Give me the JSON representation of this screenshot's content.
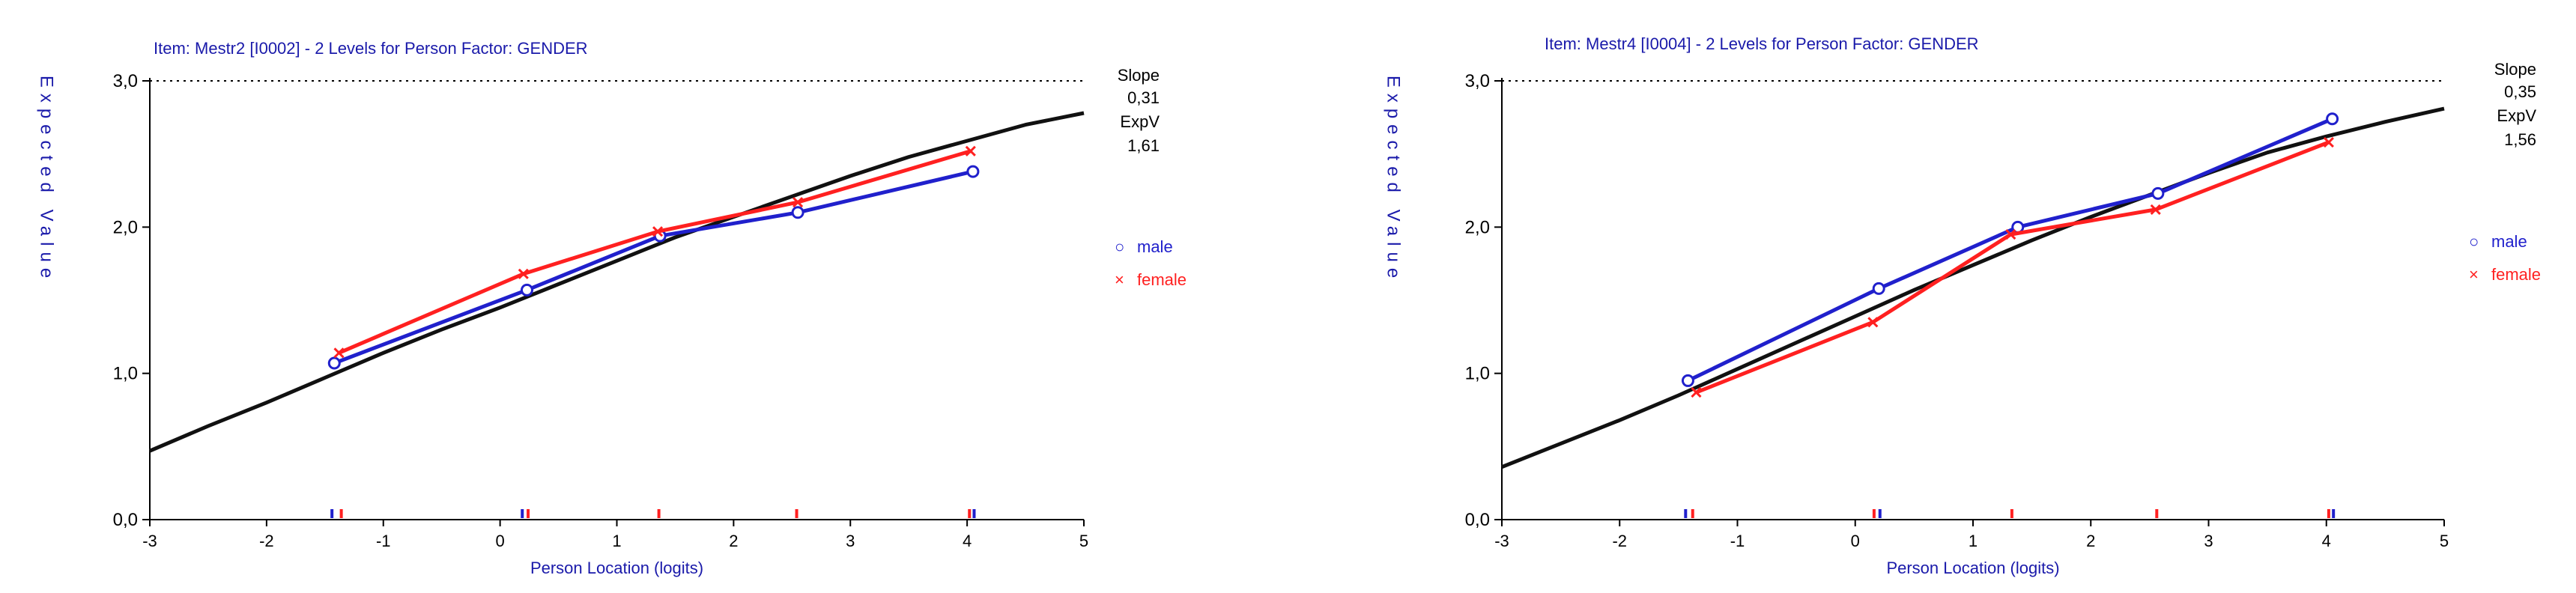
{
  "chart_data": [
    {
      "type": "line",
      "title": "Item: Mestr2 [I0002] - 2 Levels for Person Factor: GENDER",
      "xlabel": "Person Location (logits)",
      "ylabel": "Expected Value",
      "xlim": [
        -3,
        5
      ],
      "ylim": [
        0,
        3
      ],
      "x_ticks": [
        "-3",
        "-2",
        "-1",
        "0",
        "1",
        "2",
        "3",
        "4",
        "5"
      ],
      "y_ticks": [
        "0,0",
        "1,0",
        "2,0",
        "3,0"
      ],
      "max_line": 3.0,
      "stats": {
        "slope_label": "Slope",
        "slope": "0,31",
        "expv_label": "ExpV",
        "expv": "1,61"
      },
      "legend": [
        {
          "name": "male",
          "marker": "○",
          "color": "#2020cc"
        },
        {
          "name": "female",
          "marker": "×",
          "color": "#ff2020"
        }
      ],
      "icc": [
        [
          -3,
          0.47
        ],
        [
          -2.5,
          0.64
        ],
        [
          -2,
          0.8
        ],
        [
          -1.5,
          0.97
        ],
        [
          -1,
          1.14
        ],
        [
          -0.5,
          1.3
        ],
        [
          0,
          1.45
        ],
        [
          0.5,
          1.61
        ],
        [
          1,
          1.77
        ],
        [
          1.5,
          1.93
        ],
        [
          2,
          2.07
        ],
        [
          2.5,
          2.21
        ],
        [
          3,
          2.35
        ],
        [
          3.5,
          2.48
        ],
        [
          4,
          2.59
        ],
        [
          4.5,
          2.7
        ],
        [
          5,
          2.78
        ]
      ],
      "series": [
        {
          "name": "male",
          "color": "#2020cc",
          "marker": "circle",
          "x": [
            -1.42,
            0.23,
            1.37,
            2.55,
            4.05
          ],
          "y": [
            1.07,
            1.57,
            1.94,
            2.1,
            2.38
          ]
        },
        {
          "name": "female",
          "color": "#ff2020",
          "marker": "cross",
          "x": [
            -1.38,
            0.2,
            1.35,
            2.55,
            4.03
          ],
          "y": [
            1.14,
            1.68,
            1.97,
            2.17,
            2.52
          ]
        }
      ],
      "class_intervals": [
        {
          "x": -1.44,
          "color": "#2020cc"
        },
        {
          "x": -1.36,
          "color": "#ff2020"
        },
        {
          "x": 0.19,
          "color": "#2020cc"
        },
        {
          "x": 0.24,
          "color": "#ff2020"
        },
        {
          "x": 1.36,
          "color": "#ff2020"
        },
        {
          "x": 2.54,
          "color": "#ff2020"
        },
        {
          "x": 4.02,
          "color": "#ff2020"
        },
        {
          "x": 4.06,
          "color": "#2020cc"
        }
      ],
      "colors": {
        "icc": "#111111",
        "axis": "#000000"
      }
    },
    {
      "type": "line",
      "title": "Item: Mestr4 [I0004] - 2 Levels for Person Factor: GENDER",
      "xlabel": "Person Location (logits)",
      "ylabel": "Expected Value",
      "xlim": [
        -3,
        5
      ],
      "ylim": [
        0,
        3
      ],
      "x_ticks": [
        "-3",
        "-2",
        "-1",
        "0",
        "1",
        "2",
        "3",
        "4",
        "5"
      ],
      "y_ticks": [
        "0,0",
        "1,0",
        "2,0",
        "3,0"
      ],
      "max_line": 3.0,
      "stats": {
        "slope_label": "Slope",
        "slope": "0,35",
        "expv_label": "ExpV",
        "expv": "1,56"
      },
      "legend": [
        {
          "name": "male",
          "marker": "○",
          "color": "#2020cc"
        },
        {
          "name": "female",
          "marker": "×",
          "color": "#ff2020"
        }
      ],
      "icc": [
        [
          -3,
          0.36
        ],
        [
          -2.5,
          0.52
        ],
        [
          -2,
          0.68
        ],
        [
          -1.5,
          0.85
        ],
        [
          -1,
          1.03
        ],
        [
          -0.5,
          1.21
        ],
        [
          0,
          1.39
        ],
        [
          0.5,
          1.57
        ],
        [
          1,
          1.74
        ],
        [
          1.5,
          1.91
        ],
        [
          2,
          2.07
        ],
        [
          2.5,
          2.22
        ],
        [
          3,
          2.37
        ],
        [
          3.5,
          2.51
        ],
        [
          4,
          2.62
        ],
        [
          4.5,
          2.72
        ],
        [
          5,
          2.81
        ]
      ],
      "series": [
        {
          "name": "male",
          "color": "#2020cc",
          "marker": "circle",
          "x": [
            -1.42,
            0.2,
            1.38,
            2.57,
            4.05
          ],
          "y": [
            0.95,
            1.58,
            2.0,
            2.23,
            2.74
          ]
        },
        {
          "name": "female",
          "color": "#ff2020",
          "marker": "cross",
          "x": [
            -1.35,
            0.15,
            1.32,
            2.55,
            4.02
          ],
          "y": [
            0.87,
            1.35,
            1.95,
            2.12,
            2.58
          ]
        }
      ],
      "class_intervals": [
        {
          "x": -1.44,
          "color": "#2020cc"
        },
        {
          "x": -1.38,
          "color": "#ff2020"
        },
        {
          "x": 0.16,
          "color": "#ff2020"
        },
        {
          "x": 0.21,
          "color": "#2020cc"
        },
        {
          "x": 1.33,
          "color": "#ff2020"
        },
        {
          "x": 2.56,
          "color": "#ff2020"
        },
        {
          "x": 4.02,
          "color": "#ff2020"
        },
        {
          "x": 4.06,
          "color": "#2020cc"
        }
      ],
      "colors": {
        "icc": "#111111",
        "axis": "#000000"
      }
    }
  ]
}
